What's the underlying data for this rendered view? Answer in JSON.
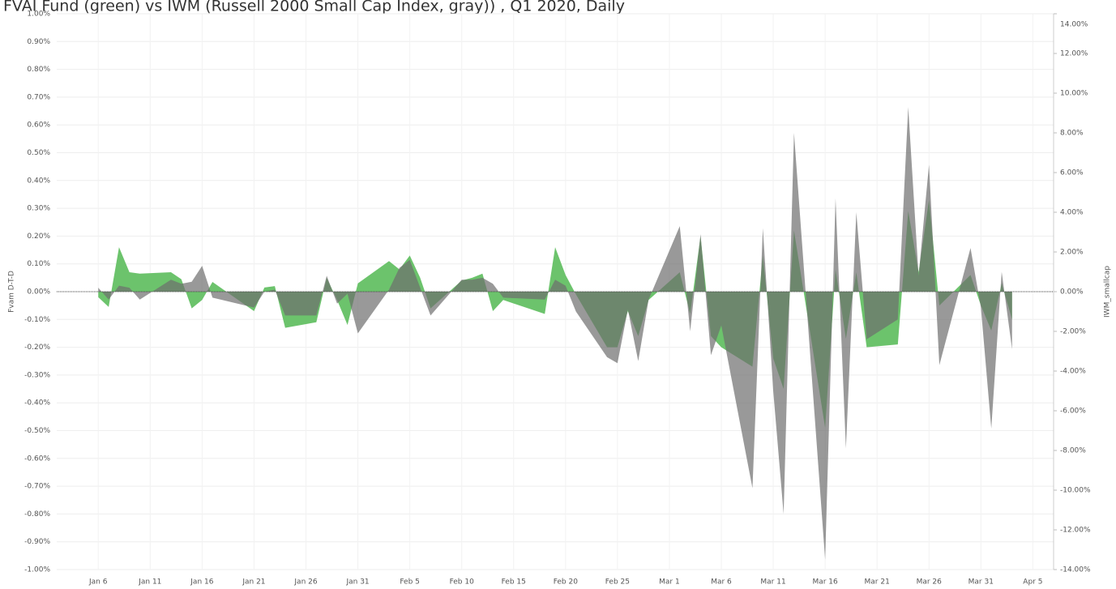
{
  "chart_data": {
    "type": "area",
    "title": "FVAI Fund (green) vs IWM (Russell 2000 Small Cap Index, gray)) , Q1 2020, Daily",
    "ylabel": "Fvam D-T-D",
    "y2label": "IWM_smallcap",
    "x": [
      "01-06",
      "01-07",
      "01-08",
      "01-09",
      "01-10",
      "01-13",
      "01-14",
      "01-15",
      "01-16",
      "01-17",
      "01-21",
      "01-22",
      "01-23",
      "01-24",
      "01-27",
      "01-28",
      "01-29",
      "01-30",
      "01-31",
      "02-03",
      "02-04",
      "02-05",
      "02-06",
      "02-07",
      "02-10",
      "02-11",
      "02-12",
      "02-13",
      "02-14",
      "02-18",
      "02-19",
      "02-20",
      "02-21",
      "02-24",
      "02-25",
      "02-26",
      "02-27",
      "02-28",
      "03-02",
      "03-03",
      "03-04",
      "03-05",
      "03-06",
      "03-09",
      "03-10",
      "03-11",
      "03-12",
      "03-13",
      "03-16",
      "03-17",
      "03-18",
      "03-19",
      "03-20",
      "03-23",
      "03-24",
      "03-25",
      "03-26",
      "03-27",
      "03-30",
      "03-31",
      "04-01",
      "04-02",
      "04-03"
    ],
    "series": [
      {
        "name": "Fvam D-T-D",
        "color": "#6cc36c",
        "values": [
          -0.02,
          -0.055,
          0.16,
          0.07,
          0.065,
          0.07,
          0.045,
          -0.06,
          -0.03,
          0.035,
          -0.07,
          0.015,
          0.02,
          -0.13,
          -0.11,
          0.05,
          -0.03,
          -0.12,
          0.03,
          0.11,
          0.08,
          0.13,
          0.05,
          -0.06,
          0.04,
          0.05,
          0.065,
          -0.07,
          -0.03,
          -0.08,
          0.16,
          0.06,
          -0.01,
          -0.2,
          -0.2,
          -0.07,
          -0.16,
          -0.03,
          0.07,
          -0.08,
          0.2,
          -0.16,
          -0.2,
          -0.27,
          0.13,
          -0.24,
          -0.35,
          0.22,
          -0.49,
          0.08,
          -0.17,
          0.07,
          -0.2,
          -0.19,
          0.29,
          0.07,
          0.33,
          -0.05,
          0.06,
          -0.05,
          -0.14,
          0.03,
          -0.1
        ]
      },
      {
        "name": "IWM_smallcap",
        "color": "#6e6e6e",
        "axis": "y2",
        "values": [
          0.2,
          -0.4,
          0.3,
          0.2,
          -0.4,
          0.6,
          0.4,
          0.5,
          1.3,
          -0.3,
          -0.8,
          0,
          0.1,
          -1.2,
          -1.2,
          0.8,
          -0.6,
          -0.1,
          -2.1,
          0.1,
          1.2,
          1.6,
          0.2,
          -1.2,
          0.6,
          0.6,
          0.7,
          0.4,
          -0.3,
          -0.4,
          0.6,
          0.3,
          -1.0,
          -3.3,
          -3.6,
          -0.9,
          -3.5,
          -0.4,
          3.3,
          -2.0,
          2.9,
          -3.2,
          -1.7,
          -9.9,
          3.2,
          -5.0,
          -11.2,
          8.0,
          -13.5,
          4.7,
          -7.9,
          4.0,
          -2.4,
          -1.4,
          9.3,
          0.8,
          6.4,
          -3.7,
          2.2,
          -0.8,
          -6.9,
          1.0,
          -2.9
        ]
      }
    ],
    "xlim": [
      "01-02",
      "04-07"
    ],
    "xticks": [
      {
        "value": "01-06",
        "label": "Jan 6"
      },
      {
        "value": "01-11",
        "label": "Jan 11"
      },
      {
        "value": "01-16",
        "label": "Jan 16"
      },
      {
        "value": "01-21",
        "label": "Jan 21"
      },
      {
        "value": "01-26",
        "label": "Jan 26"
      },
      {
        "value": "01-31",
        "label": "Jan 31"
      },
      {
        "value": "02-05",
        "label": "Feb 5"
      },
      {
        "value": "02-10",
        "label": "Feb 10"
      },
      {
        "value": "02-15",
        "label": "Feb 15"
      },
      {
        "value": "02-20",
        "label": "Feb 20"
      },
      {
        "value": "02-25",
        "label": "Feb 25"
      },
      {
        "value": "03-01",
        "label": "Mar 1"
      },
      {
        "value": "03-06",
        "label": "Mar 6"
      },
      {
        "value": "03-11",
        "label": "Mar 11"
      },
      {
        "value": "03-16",
        "label": "Mar 16"
      },
      {
        "value": "03-21",
        "label": "Mar 21"
      },
      {
        "value": "03-26",
        "label": "Mar 26"
      },
      {
        "value": "03-31",
        "label": "Mar 31"
      },
      {
        "value": "04-05",
        "label": "Apr 5"
      }
    ],
    "ylim": [
      -1,
      1
    ],
    "yticks": [
      {
        "value": -1,
        "label": "-1.00%"
      },
      {
        "value": -0.9,
        "label": "-0.90%"
      },
      {
        "value": -0.8,
        "label": "-0.80%"
      },
      {
        "value": -0.7,
        "label": "-0.70%"
      },
      {
        "value": -0.6,
        "label": "-0.60%"
      },
      {
        "value": -0.5,
        "label": "-0.50%"
      },
      {
        "value": -0.4,
        "label": "-0.40%"
      },
      {
        "value": -0.3,
        "label": "-0.30%"
      },
      {
        "value": -0.2,
        "label": "-0.20%"
      },
      {
        "value": -0.1,
        "label": "-0.10%"
      },
      {
        "value": 0,
        "label": "0.00%"
      },
      {
        "value": 0.1,
        "label": "0.10%"
      },
      {
        "value": 0.2,
        "label": "0.20%"
      },
      {
        "value": 0.3,
        "label": "0.30%"
      },
      {
        "value": 0.4,
        "label": "0.40%"
      },
      {
        "value": 0.5,
        "label": "0.50%"
      },
      {
        "value": 0.6,
        "label": "0.60%"
      },
      {
        "value": 0.7,
        "label": "0.70%"
      },
      {
        "value": 0.8,
        "label": "0.80%"
      },
      {
        "value": 0.9,
        "label": "0.90%"
      },
      {
        "value": 1,
        "label": "1.00%"
      }
    ],
    "y2lim": [
      -14,
      14
    ],
    "y2ticks": [
      {
        "value": -14,
        "label": "-14.00%"
      },
      {
        "value": -12,
        "label": "-12.00%"
      },
      {
        "value": -10,
        "label": "-10.00%"
      },
      {
        "value": -8,
        "label": "-8.00%"
      },
      {
        "value": -6,
        "label": "-6.00%"
      },
      {
        "value": -4,
        "label": "-4.00%"
      },
      {
        "value": -2,
        "label": "-2.00%"
      },
      {
        "value": 0,
        "label": "0.00%"
      },
      {
        "value": 2,
        "label": "2.00%"
      },
      {
        "value": 4,
        "label": "4.00%"
      },
      {
        "value": 6,
        "label": "6.00%"
      },
      {
        "value": 8,
        "label": "8.00%"
      },
      {
        "value": 10,
        "label": "10.00%"
      },
      {
        "value": 12,
        "label": "12.00%"
      },
      {
        "value": 14,
        "label": "14.00%"
      }
    ],
    "grid": true
  }
}
